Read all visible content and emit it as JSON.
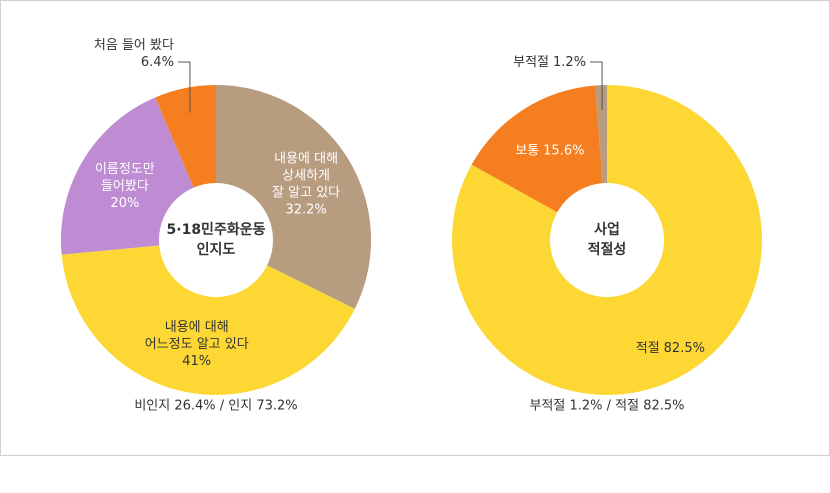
{
  "chart_data": [
    {
      "type": "pie",
      "hole": true,
      "center_label": [
        "5·18민주화운동",
        "인지도"
      ],
      "categories": [
        [
          "내용에 대해",
          "상세하게",
          "잘 알고 있다"
        ],
        [
          "내용에 대해",
          "어느정도 알고 있다"
        ],
        [
          "이름정도만",
          "들어봤다"
        ],
        [
          "처음 들어 봤다"
        ]
      ],
      "values": [
        32.2,
        41,
        20,
        6.4
      ],
      "value_labels": [
        "32.2%",
        "41%",
        "20%",
        "6.4%"
      ],
      "colors": [
        "#b89c80",
        "#fdd835",
        "#bf8bd2",
        "#f57f20"
      ],
      "label_inline": false,
      "note": "비인지 26.4% / 인지 73.2%"
    },
    {
      "type": "pie",
      "hole": true,
      "center_label": [
        "사업",
        "적절성"
      ],
      "categories": [
        [
          "적절"
        ],
        [
          "보통"
        ],
        [
          "부적절"
        ]
      ],
      "values": [
        82.5,
        15.6,
        1.2
      ],
      "value_labels": [
        "82.5%",
        "15.6%",
        "1.2%"
      ],
      "colors": [
        "#fdd835",
        "#f57f20",
        "#b89c80"
      ],
      "label_inline": true,
      "note": "부적절 1.2% / 적절 82.5%"
    }
  ]
}
